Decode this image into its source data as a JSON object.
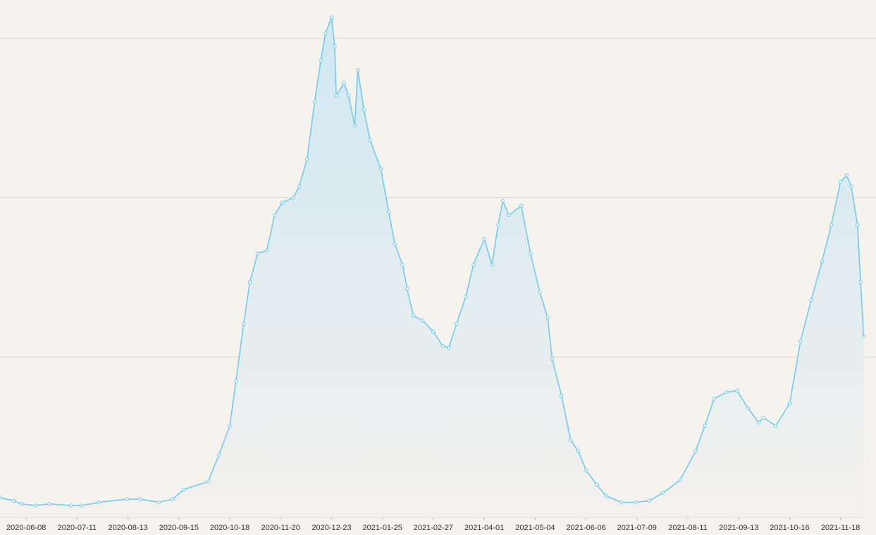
{
  "chart_data": {
    "type": "area",
    "x": [
      "2020-05-22",
      "2020-05-31",
      "2020-06-05",
      "2020-06-14",
      "2020-06-23",
      "2020-07-07",
      "2020-07-14",
      "2020-07-25",
      "2020-08-12",
      "2020-08-21",
      "2020-09-02",
      "2020-09-11",
      "2020-09-18",
      "2020-10-04",
      "2020-10-11",
      "2020-10-18",
      "2020-10-22",
      "2020-10-27",
      "2020-10-31",
      "2020-11-05",
      "2020-11-11",
      "2020-11-16",
      "2020-11-21",
      "2020-11-28",
      "2020-12-02",
      "2020-12-07",
      "2020-12-12",
      "2020-12-16",
      "2020-12-19",
      "2020-12-23",
      "2020-12-25",
      "2020-12-26",
      "2020-12-31",
      "2021-01-03",
      "2021-01-07",
      "2021-01-09",
      "2021-01-13",
      "2021-01-17",
      "2021-01-24",
      "2021-01-29",
      "2021-02-02",
      "2021-02-07",
      "2021-02-10",
      "2021-02-14",
      "2021-02-20",
      "2021-02-27",
      "2021-03-05",
      "2021-03-09",
      "2021-03-14",
      "2021-03-20",
      "2021-03-25",
      "2021-04-01",
      "2021-04-06",
      "2021-04-10",
      "2021-04-13",
      "2021-04-17",
      "2021-04-25",
      "2021-05-01",
      "2021-05-07",
      "2021-05-12",
      "2021-05-15",
      "2021-05-21",
      "2021-05-27",
      "2021-06-01",
      "2021-06-06",
      "2021-06-13",
      "2021-06-19",
      "2021-06-29",
      "2021-07-08",
      "2021-07-17",
      "2021-07-26",
      "2021-08-06",
      "2021-08-16",
      "2021-08-22",
      "2021-08-28",
      "2021-09-05",
      "2021-09-12",
      "2021-09-19",
      "2021-09-26",
      "2021-09-29",
      "2021-10-07",
      "2021-10-16",
      "2021-10-23",
      "2021-10-30",
      "2021-11-06",
      "2021-11-12",
      "2021-11-18",
      "2021-11-22",
      "2021-11-25",
      "2021-11-29",
      "2021-12-01",
      "2021-12-03"
    ],
    "series": [
      {
        "color": "#6cc8ec",
        "values": [
          0.12,
          0.1,
          0.08,
          0.07,
          0.08,
          0.07,
          0.07,
          0.09,
          0.11,
          0.11,
          0.09,
          0.11,
          0.17,
          0.22,
          0.39,
          0.57,
          0.85,
          1.21,
          1.47,
          1.65,
          1.67,
          1.89,
          1.97,
          2.0,
          2.07,
          2.24,
          2.6,
          2.86,
          3.03,
          3.13,
          2.95,
          2.64,
          2.72,
          2.64,
          2.45,
          2.8,
          2.55,
          2.36,
          2.18,
          1.91,
          1.71,
          1.58,
          1.43,
          1.26,
          1.23,
          1.16,
          1.07,
          1.06,
          1.21,
          1.38,
          1.58,
          1.74,
          1.58,
          1.83,
          1.98,
          1.89,
          1.95,
          1.65,
          1.41,
          1.25,
          0.99,
          0.76,
          0.48,
          0.41,
          0.29,
          0.2,
          0.13,
          0.09,
          0.09,
          0.1,
          0.15,
          0.23,
          0.41,
          0.57,
          0.74,
          0.78,
          0.79,
          0.68,
          0.59,
          0.62,
          0.57,
          0.71,
          1.1,
          1.36,
          1.6,
          1.83,
          2.1,
          2.14,
          2.07,
          1.83,
          1.47,
          1.13
        ]
      }
    ],
    "xlim": [
      "2020-05-22",
      "2021-12-11"
    ],
    "xticks": [
      "2020-06-08",
      "2020-07-11",
      "2020-08-13",
      "2020-09-15",
      "2020-10-18",
      "2020-11-20",
      "2020-12-23",
      "2021-01-25",
      "2021-02-27",
      "2021-04-01",
      "2021-05-04",
      "2021-06-06",
      "2021-07-09",
      "2021-08-11",
      "2021-09-13",
      "2021-10-16",
      "2021-11-18"
    ],
    "ylim": [
      0,
      3.2
    ],
    "ygrid": [
      1,
      2,
      3
    ]
  }
}
